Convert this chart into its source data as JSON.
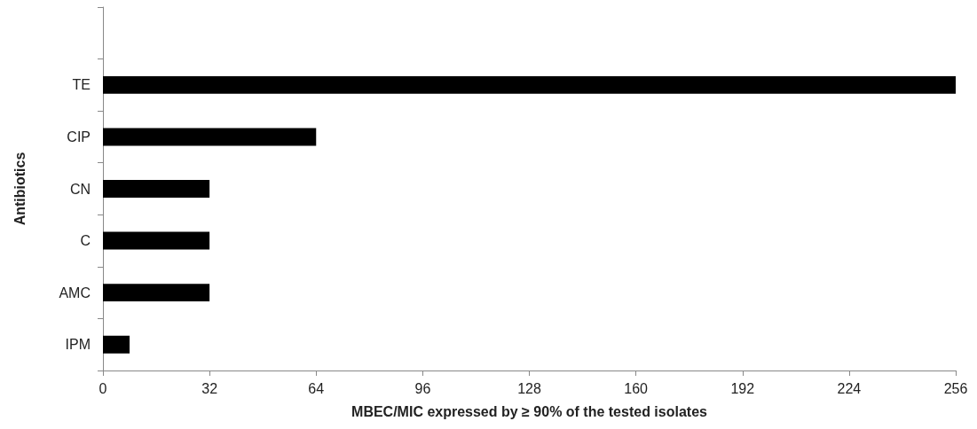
{
  "chart_data": {
    "type": "bar",
    "orientation": "horizontal",
    "xlabel": "MBEC/MIC expressed by ≥ 90% of the tested isolates",
    "ylabel": "Antibiotics",
    "categories": [
      null,
      "TE",
      "CIP",
      "CN",
      "C",
      "AMC",
      "IPM"
    ],
    "values": [
      null,
      256,
      64,
      32,
      32,
      32,
      8
    ],
    "color": "#000000",
    "xlim": [
      0,
      256
    ],
    "xticks": [
      0,
      32,
      64,
      96,
      128,
      160,
      192,
      224,
      256
    ],
    "grid": false
  }
}
